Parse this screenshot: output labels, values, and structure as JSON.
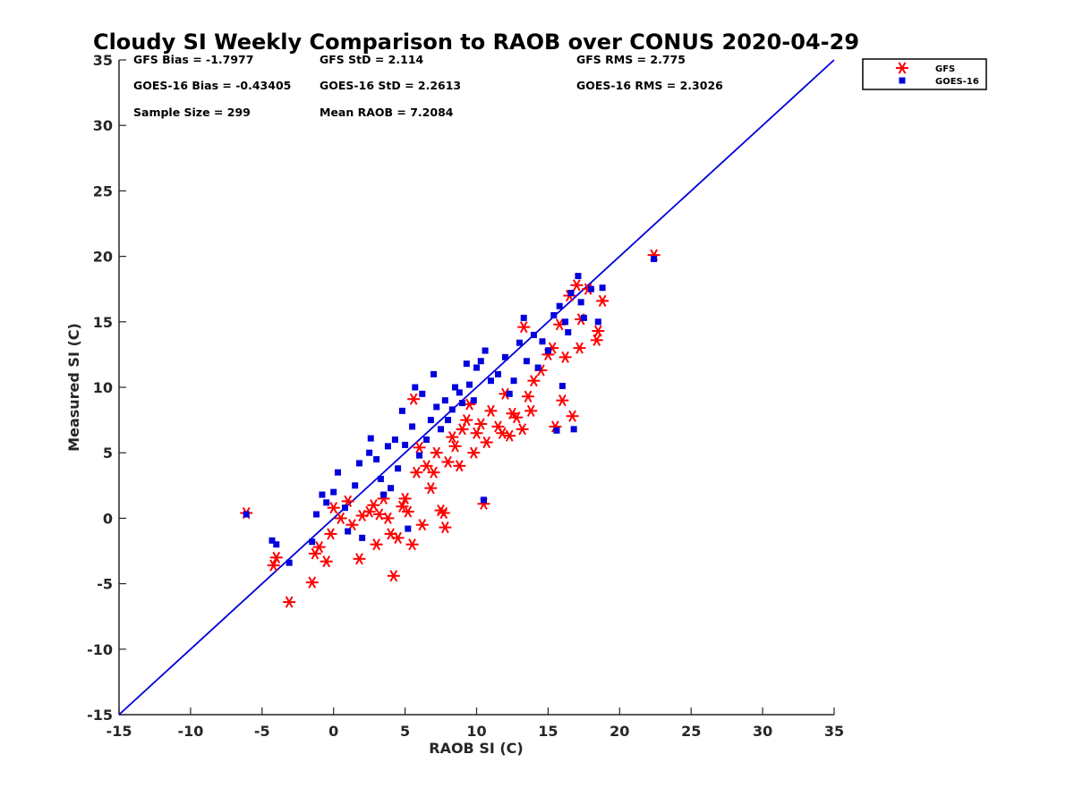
{
  "chart_data": {
    "type": "scatter",
    "title": "Cloudy SI Weekly Comparison to RAOB over CONUS 2020-04-29",
    "xlabel": "RAOB SI (C)",
    "ylabel": "Measured SI (C)",
    "xlim": [
      -15,
      35
    ],
    "ylim": [
      -15,
      35
    ],
    "xticks": [
      "-15",
      "-10",
      "-5",
      "0",
      "5",
      "10",
      "15",
      "20",
      "25",
      "30",
      "35"
    ],
    "yticks": [
      "-15",
      "-10",
      "-5",
      "0",
      "5",
      "10",
      "15",
      "20",
      "25",
      "30",
      "35"
    ],
    "grid": false,
    "legend_position": "top-right, outside plot area",
    "reference_line": {
      "type": "one-to-one",
      "color": "#0000dd",
      "points": [
        [
          -15,
          -15
        ],
        [
          35,
          35
        ]
      ]
    },
    "stats": [
      "GFS Bias = -1.7977",
      "GFS StD = 2.114",
      "GFS RMS = 2.775",
      "GOES-16 Bias = -0.43405",
      "GOES-16 StD = 2.2613",
      "GOES-16 RMS = 2.3026",
      "Sample Size = 299",
      "Mean RAOB = 7.2084"
    ],
    "series": [
      {
        "name": "GFS",
        "marker": "asterisk",
        "color": "#ff0000",
        "points": [
          [
            -6.1,
            0.4
          ],
          [
            -4.2,
            -3.6
          ],
          [
            -4.0,
            -3.0
          ],
          [
            -3.1,
            -6.4
          ],
          [
            -1.5,
            -4.9
          ],
          [
            -1.3,
            -2.7
          ],
          [
            -1.0,
            -2.2
          ],
          [
            -0.5,
            -3.3
          ],
          [
            -0.2,
            -1.2
          ],
          [
            0.0,
            0.8
          ],
          [
            0.5,
            0.0
          ],
          [
            1.0,
            1.3
          ],
          [
            1.3,
            -0.5
          ],
          [
            1.8,
            -3.1
          ],
          [
            2.0,
            0.2
          ],
          [
            2.5,
            0.5
          ],
          [
            2.8,
            1.0
          ],
          [
            3.0,
            -2.0
          ],
          [
            3.2,
            0.3
          ],
          [
            3.5,
            1.5
          ],
          [
            3.8,
            0.0
          ],
          [
            4.0,
            -1.2
          ],
          [
            4.2,
            -4.4
          ],
          [
            4.5,
            -1.5
          ],
          [
            4.8,
            0.9
          ],
          [
            5.0,
            1.5
          ],
          [
            5.2,
            0.5
          ],
          [
            5.5,
            -2.0
          ],
          [
            5.6,
            9.1
          ],
          [
            5.8,
            3.5
          ],
          [
            6.0,
            5.4
          ],
          [
            6.2,
            -0.5
          ],
          [
            6.5,
            4.0
          ],
          [
            6.8,
            2.3
          ],
          [
            7.0,
            3.5
          ],
          [
            7.2,
            5.0
          ],
          [
            7.5,
            0.6
          ],
          [
            7.7,
            0.4
          ],
          [
            7.8,
            -0.7
          ],
          [
            8.0,
            4.3
          ],
          [
            8.3,
            6.2
          ],
          [
            8.5,
            5.5
          ],
          [
            8.8,
            4.0
          ],
          [
            9.0,
            6.8
          ],
          [
            9.3,
            7.5
          ],
          [
            9.5,
            8.7
          ],
          [
            9.8,
            5.0
          ],
          [
            10.0,
            6.5
          ],
          [
            10.3,
            7.2
          ],
          [
            10.5,
            1.1
          ],
          [
            10.7,
            5.8
          ],
          [
            11.0,
            8.2
          ],
          [
            11.5,
            7.0
          ],
          [
            11.8,
            6.5
          ],
          [
            12.0,
            9.5
          ],
          [
            12.3,
            6.3
          ],
          [
            12.5,
            8.0
          ],
          [
            12.8,
            7.7
          ],
          [
            13.2,
            6.8
          ],
          [
            13.3,
            14.6
          ],
          [
            13.6,
            9.3
          ],
          [
            13.8,
            8.2
          ],
          [
            14.0,
            10.5
          ],
          [
            14.5,
            11.3
          ],
          [
            15.0,
            12.5
          ],
          [
            15.3,
            13.0
          ],
          [
            15.5,
            7.0
          ],
          [
            15.8,
            14.8
          ],
          [
            16.0,
            9.0
          ],
          [
            16.2,
            12.3
          ],
          [
            16.5,
            17.0
          ],
          [
            16.7,
            7.8
          ],
          [
            17.0,
            17.8
          ],
          [
            17.2,
            13.0
          ],
          [
            17.3,
            15.2
          ],
          [
            17.8,
            17.5
          ],
          [
            18.4,
            13.6
          ],
          [
            18.5,
            14.3
          ],
          [
            18.8,
            16.6
          ],
          [
            22.4,
            20.1
          ]
        ]
      },
      {
        "name": "GOES-16",
        "marker": "square",
        "color": "#0000dd",
        "points": [
          [
            -6.1,
            0.3
          ],
          [
            -4.3,
            -1.7
          ],
          [
            -4.0,
            -2.0
          ],
          [
            -3.1,
            -3.4
          ],
          [
            -1.5,
            -1.8
          ],
          [
            -1.2,
            0.3
          ],
          [
            -0.8,
            1.8
          ],
          [
            -0.5,
            1.2
          ],
          [
            0.0,
            2.0
          ],
          [
            0.3,
            3.5
          ],
          [
            0.8,
            0.8
          ],
          [
            1.0,
            -1.0
          ],
          [
            1.5,
            2.5
          ],
          [
            1.8,
            4.2
          ],
          [
            2.0,
            -1.5
          ],
          [
            2.5,
            5.0
          ],
          [
            2.6,
            6.1
          ],
          [
            3.0,
            4.5
          ],
          [
            3.3,
            3.0
          ],
          [
            3.5,
            1.8
          ],
          [
            3.8,
            5.5
          ],
          [
            4.0,
            2.3
          ],
          [
            4.3,
            6.0
          ],
          [
            4.5,
            3.8
          ],
          [
            4.8,
            8.2
          ],
          [
            5.0,
            5.6
          ],
          [
            5.2,
            -0.8
          ],
          [
            5.5,
            7.0
          ],
          [
            5.7,
            10.0
          ],
          [
            6.0,
            4.8
          ],
          [
            6.2,
            9.5
          ],
          [
            6.5,
            6.0
          ],
          [
            6.8,
            7.5
          ],
          [
            7.0,
            11.0
          ],
          [
            7.2,
            8.5
          ],
          [
            7.5,
            6.8
          ],
          [
            7.8,
            9.0
          ],
          [
            8.0,
            7.5
          ],
          [
            8.3,
            8.3
          ],
          [
            8.5,
            10.0
          ],
          [
            8.8,
            9.6
          ],
          [
            9.0,
            8.8
          ],
          [
            9.3,
            11.8
          ],
          [
            9.5,
            10.2
          ],
          [
            9.8,
            9.0
          ],
          [
            10.0,
            11.5
          ],
          [
            10.3,
            12.0
          ],
          [
            10.5,
            1.4
          ],
          [
            10.6,
            12.8
          ],
          [
            11.0,
            10.5
          ],
          [
            11.5,
            11.0
          ],
          [
            12.0,
            12.3
          ],
          [
            12.3,
            9.5
          ],
          [
            12.6,
            10.5
          ],
          [
            13.0,
            13.4
          ],
          [
            13.3,
            15.3
          ],
          [
            13.5,
            12.0
          ],
          [
            14.0,
            14.0
          ],
          [
            14.3,
            11.5
          ],
          [
            14.6,
            13.5
          ],
          [
            15.0,
            12.8
          ],
          [
            15.4,
            15.5
          ],
          [
            15.6,
            6.7
          ],
          [
            15.8,
            16.2
          ],
          [
            16.0,
            10.1
          ],
          [
            16.2,
            15.0
          ],
          [
            16.4,
            14.2
          ],
          [
            16.6,
            17.2
          ],
          [
            16.8,
            6.8
          ],
          [
            17.1,
            18.5
          ],
          [
            17.3,
            16.5
          ],
          [
            17.5,
            15.3
          ],
          [
            18.0,
            17.5
          ],
          [
            18.5,
            15.0
          ],
          [
            18.8,
            17.6
          ],
          [
            22.4,
            19.8
          ]
        ]
      }
    ]
  }
}
